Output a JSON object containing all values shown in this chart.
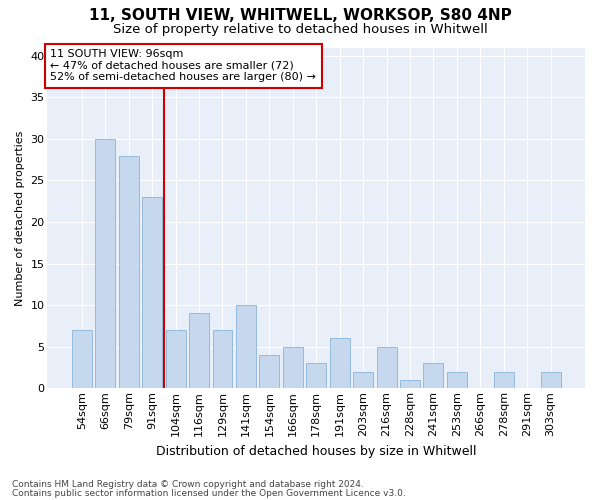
{
  "title1": "11, SOUTH VIEW, WHITWELL, WORKSOP, S80 4NP",
  "title2": "Size of property relative to detached houses in Whitwell",
  "xlabel": "Distribution of detached houses by size in Whitwell",
  "ylabel": "Number of detached properties",
  "categories": [
    "54sqm",
    "66sqm",
    "79sqm",
    "91sqm",
    "104sqm",
    "116sqm",
    "129sqm",
    "141sqm",
    "154sqm",
    "166sqm",
    "178sqm",
    "191sqm",
    "203sqm",
    "216sqm",
    "228sqm",
    "241sqm",
    "253sqm",
    "266sqm",
    "278sqm",
    "291sqm",
    "303sqm"
  ],
  "values": [
    7,
    30,
    28,
    23,
    7,
    9,
    7,
    10,
    4,
    5,
    3,
    6,
    2,
    5,
    1,
    3,
    2,
    0,
    2,
    0,
    2
  ],
  "bar_color": "#c5d8ee",
  "bar_edge_color": "#8ab4d8",
  "vline_x": 3.5,
  "vline_color": "#cc0000",
  "annotation_text": "11 SOUTH VIEW: 96sqm\n← 47% of detached houses are smaller (72)\n52% of semi-detached houses are larger (80) →",
  "annotation_box_color": "#ffffff",
  "annotation_box_edge": "#cc0000",
  "ylim": [
    0,
    41
  ],
  "yticks": [
    0,
    5,
    10,
    15,
    20,
    25,
    30,
    35,
    40
  ],
  "footer1": "Contains HM Land Registry data © Crown copyright and database right 2024.",
  "footer2": "Contains public sector information licensed under the Open Government Licence v3.0.",
  "plot_bg_color": "#e8eff8",
  "grid_color": "#ffffff",
  "title1_fontsize": 11,
  "title2_fontsize": 9.5,
  "xlabel_fontsize": 9,
  "ylabel_fontsize": 8,
  "tick_fontsize": 8,
  "footer_fontsize": 6.5
}
